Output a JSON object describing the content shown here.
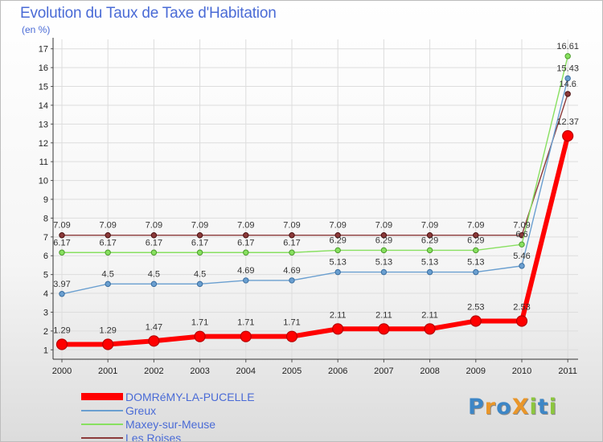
{
  "chart_data": {
    "type": "line",
    "title": "Evolution du Taux de Taxe d'Habitation",
    "subtitle": "(en %)",
    "xlabel": "",
    "ylabel": "(en %)",
    "x": [
      "2000",
      "2001",
      "2002",
      "2003",
      "2004",
      "2005",
      "2006",
      "2007",
      "2008",
      "2009",
      "2010",
      "2011"
    ],
    "ylim": [
      0.5,
      17.5
    ],
    "yticks": [
      1,
      2,
      3,
      4,
      5,
      6,
      7,
      8,
      9,
      10,
      11,
      12,
      13,
      14,
      15,
      16,
      17
    ],
    "grid": true,
    "legend_position": "bottom-left",
    "series": [
      {
        "name": "DOMRéMY-LA-PUCELLE",
        "color": "#ff0000",
        "values": [
          1.29,
          1.29,
          1.47,
          1.71,
          1.71,
          1.71,
          2.11,
          2.11,
          2.11,
          2.53,
          2.53,
          12.37
        ],
        "labels": [
          "1.29",
          "1.29",
          "1.47",
          "1.71",
          "1.71",
          "1.71",
          "2.11",
          "2.11",
          "2.11",
          "2.53",
          "2.53",
          "12.37"
        ]
      },
      {
        "name": "Greux",
        "color": "#6a9fd0",
        "values": [
          3.97,
          4.5,
          4.5,
          4.5,
          4.69,
          4.69,
          5.13,
          5.13,
          5.13,
          5.13,
          5.46,
          15.43
        ],
        "labels": [
          "3.97",
          "4.5",
          "4.5",
          "4.5",
          "4.69",
          "4.69",
          "5.13",
          "5.13",
          "5.13",
          "5.13",
          "5.46",
          "15.43"
        ]
      },
      {
        "name": "Maxey-sur-Meuse",
        "color": "#88e060",
        "values": [
          6.17,
          6.17,
          6.17,
          6.17,
          6.17,
          6.17,
          6.29,
          6.29,
          6.29,
          6.29,
          6.6,
          16.61
        ],
        "labels": [
          "6.17",
          "6.17",
          "6.17",
          "6.17",
          "6.17",
          "6.17",
          "6.29",
          "6.29",
          "6.29",
          "6.29",
          "6.6",
          "16.61"
        ]
      },
      {
        "name": "Les Roises",
        "color": "#8b3a3a",
        "values": [
          7.09,
          7.09,
          7.09,
          7.09,
          7.09,
          7.09,
          7.09,
          7.09,
          7.09,
          7.09,
          7.09,
          14.6
        ],
        "labels": [
          "7.09",
          "7.09",
          "7.09",
          "7.09",
          "7.09",
          "7.09",
          "7.09",
          "7.09",
          "7.09",
          "7.09",
          "7.09",
          "14.6"
        ]
      }
    ]
  },
  "logo": {
    "text": "ProXiti"
  }
}
